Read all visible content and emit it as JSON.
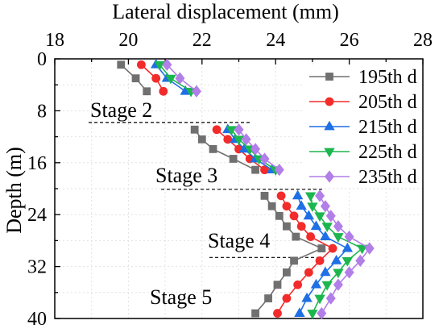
{
  "chart_data": {
    "type": "line",
    "xlabel": "Lateral displacement (mm)",
    "ylabel": "Depth (m)",
    "xlim": [
      18,
      28
    ],
    "ylim": [
      0,
      40
    ],
    "y_inverted": true,
    "x_axis_position": "top",
    "xticks": [
      18,
      20,
      22,
      24,
      26,
      28
    ],
    "yticks": [
      0,
      8,
      16,
      24,
      32,
      40
    ],
    "grid": true,
    "legend_position": "top-right",
    "series": [
      {
        "name": "195th d",
        "color": "#707070",
        "marker": "square",
        "segments": [
          [
            [
              19.8,
              0.9
            ],
            [
              20.2,
              3
            ],
            [
              20.5,
              5
            ]
          ],
          [
            [
              21.8,
              10.9
            ],
            [
              22.0,
              12.4
            ],
            [
              22.3,
              13.9
            ],
            [
              22.85,
              15.4
            ],
            [
              23.45,
              17.1
            ]
          ],
          [
            [
              23.7,
              21.1
            ],
            [
              23.9,
              22.7
            ],
            [
              24.1,
              24.2
            ],
            [
              24.3,
              25.8
            ],
            [
              24.55,
              27.4
            ],
            [
              25.25,
              29.2
            ],
            [
              24.5,
              31.1
            ],
            [
              24.3,
              32.9
            ],
            [
              24.05,
              34.8
            ],
            [
              23.8,
              36.9
            ],
            [
              23.45,
              39.2
            ]
          ]
        ]
      },
      {
        "name": "205th d",
        "color": "#f22b2b",
        "marker": "circle",
        "segments": [
          [
            [
              20.35,
              0.9
            ],
            [
              20.75,
              3
            ],
            [
              20.95,
              5
            ]
          ],
          [
            [
              22.4,
              10.9
            ],
            [
              22.7,
              12.4
            ],
            [
              23.0,
              13.9
            ],
            [
              23.3,
              15.4
            ],
            [
              23.7,
              17.1
            ]
          ],
          [
            [
              24.15,
              21.1
            ],
            [
              24.3,
              22.7
            ],
            [
              24.5,
              24.2
            ],
            [
              24.7,
              25.8
            ],
            [
              24.95,
              27.4
            ],
            [
              25.55,
              29.2
            ],
            [
              25.2,
              31.1
            ],
            [
              24.9,
              32.9
            ],
            [
              24.6,
              34.8
            ],
            [
              24.3,
              36.9
            ],
            [
              24.05,
              39.2
            ]
          ]
        ]
      },
      {
        "name": "215th d",
        "color": "#1f6fe5",
        "marker": "triangle-up",
        "segments": [
          [
            [
              20.75,
              0.9
            ],
            [
              21.05,
              3
            ],
            [
              21.55,
              5
            ]
          ],
          [
            [
              22.7,
              10.9
            ],
            [
              22.9,
              12.4
            ],
            [
              23.15,
              13.9
            ],
            [
              23.45,
              15.4
            ],
            [
              23.9,
              17.1
            ]
          ],
          [
            [
              24.6,
              21.1
            ],
            [
              24.7,
              22.7
            ],
            [
              24.9,
              24.2
            ],
            [
              25.1,
              25.8
            ],
            [
              25.35,
              27.4
            ],
            [
              25.95,
              29.2
            ],
            [
              25.65,
              31.1
            ],
            [
              25.35,
              32.9
            ],
            [
              25.1,
              34.8
            ],
            [
              24.85,
              36.9
            ],
            [
              24.65,
              39.2
            ]
          ]
        ]
      },
      {
        "name": "225th d",
        "color": "#1cb64f",
        "marker": "triangle-down",
        "segments": [
          [
            [
              20.85,
              0.9
            ],
            [
              21.15,
              3
            ],
            [
              21.7,
              5
            ]
          ],
          [
            [
              22.8,
              10.9
            ],
            [
              23.0,
              12.4
            ],
            [
              23.3,
              13.9
            ],
            [
              23.55,
              15.4
            ],
            [
              24.0,
              17.1
            ]
          ],
          [
            [
              24.95,
              21.1
            ],
            [
              25.0,
              22.7
            ],
            [
              25.2,
              24.2
            ],
            [
              25.4,
              25.8
            ],
            [
              25.7,
              27.4
            ],
            [
              26.35,
              29.2
            ],
            [
              25.95,
              31.1
            ],
            [
              25.7,
              32.9
            ],
            [
              25.4,
              34.8
            ],
            [
              25.2,
              36.9
            ],
            [
              25.0,
              39.2
            ]
          ]
        ]
      },
      {
        "name": "235th d",
        "color": "#b27ee8",
        "marker": "diamond",
        "segments": [
          [
            [
              21.05,
              0.9
            ],
            [
              21.4,
              3
            ],
            [
              21.85,
              5
            ]
          ],
          [
            [
              23.0,
              10.9
            ],
            [
              23.2,
              12.4
            ],
            [
              23.45,
              13.9
            ],
            [
              23.7,
              15.4
            ],
            [
              24.1,
              17.1
            ]
          ],
          [
            [
              25.2,
              21.1
            ],
            [
              25.35,
              22.7
            ],
            [
              25.5,
              24.2
            ],
            [
              25.7,
              25.8
            ],
            [
              26.0,
              27.4
            ],
            [
              26.55,
              29.2
            ],
            [
              26.3,
              31.1
            ],
            [
              26.0,
              32.9
            ],
            [
              25.7,
              34.8
            ],
            [
              25.5,
              36.9
            ],
            [
              25.25,
              39.2
            ]
          ]
        ]
      }
    ],
    "annotations": [
      {
        "text": "Stage 2",
        "line_depth": 9.8
      },
      {
        "text": "Stage 3",
        "line_depth": 20.1
      },
      {
        "text": "Stage 4",
        "line_depth": 30.6
      },
      {
        "text": "Stage 5",
        "line_depth": null
      }
    ]
  }
}
